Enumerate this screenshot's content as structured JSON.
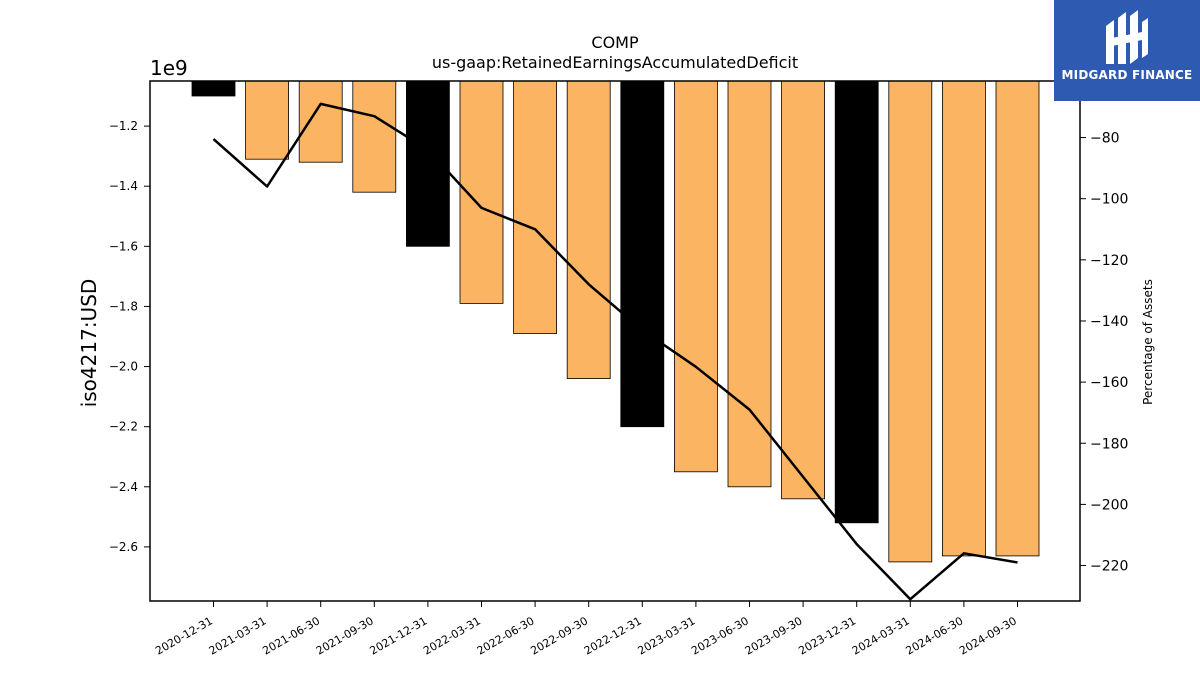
{
  "chart_data": {
    "type": "bar",
    "title": "COMP",
    "subtitle": "us-gaap:RetainedEarningsAccumulatedDeficit",
    "ylabel": "iso4217:USD",
    "y_offset_label": "1e9",
    "y2label": "Percentage of Assets",
    "categories": [
      "2020-12-31",
      "2021-03-31",
      "2021-06-30",
      "2021-09-30",
      "2021-12-31",
      "2022-03-31",
      "2022-06-30",
      "2022-09-30",
      "2022-12-31",
      "2023-03-31",
      "2023-06-30",
      "2023-09-30",
      "2023-12-31",
      "2024-03-31",
      "2024-06-30",
      "2024-09-30"
    ],
    "series": [
      {
        "type": "bar",
        "values": [
          -1.1,
          -1.31,
          -1.32,
          -1.42,
          -1.6,
          -1.79,
          -1.89,
          -2.04,
          -2.2,
          -2.35,
          -2.4,
          -2.44,
          -2.52,
          -2.65,
          -2.63,
          -2.63
        ],
        "colors": [
          "#000000",
          "#fbb462",
          "#fbb462",
          "#fbb462",
          "#000000",
          "#fbb462",
          "#fbb462",
          "#fbb462",
          "#000000",
          "#fbb462",
          "#fbb462",
          "#fbb462",
          "#000000",
          "#fbb462",
          "#fbb462",
          "#fbb462"
        ]
      },
      {
        "type": "line",
        "axis": "right",
        "values": [
          -80.5,
          -96,
          -69,
          -73,
          -84,
          -103,
          -110,
          -128,
          -143,
          -155,
          -169,
          -191,
          -213,
          -231,
          -216,
          -219
        ],
        "color": "#000000"
      }
    ],
    "ylim": [
      -2.78,
      -1.05
    ],
    "y2lim": [
      -231.6,
      -61.5
    ],
    "yticks": [
      -1.2,
      -1.4,
      -1.6,
      -1.8,
      -2.0,
      -2.2,
      -2.4,
      -2.6
    ],
    "ytick_labels": [
      "−1.2",
      "−1.4",
      "−1.6",
      "−1.8",
      "−2.0",
      "−2.2",
      "−2.4",
      "−2.6"
    ],
    "y2ticks": [
      -80,
      -100,
      -120,
      -140,
      -160,
      -180,
      -200,
      -220
    ],
    "y2tick_labels": [
      "−80",
      "−100",
      "−120",
      "−140",
      "−160",
      "−180",
      "−200",
      "−220"
    ],
    "grid": false,
    "colors": {
      "bar_default": "#fbb462",
      "bar_annual": "#000000",
      "line": "#000000"
    }
  },
  "logo": {
    "text": "MIDGARD FINANCE",
    "background": "#2e5bb1"
  }
}
